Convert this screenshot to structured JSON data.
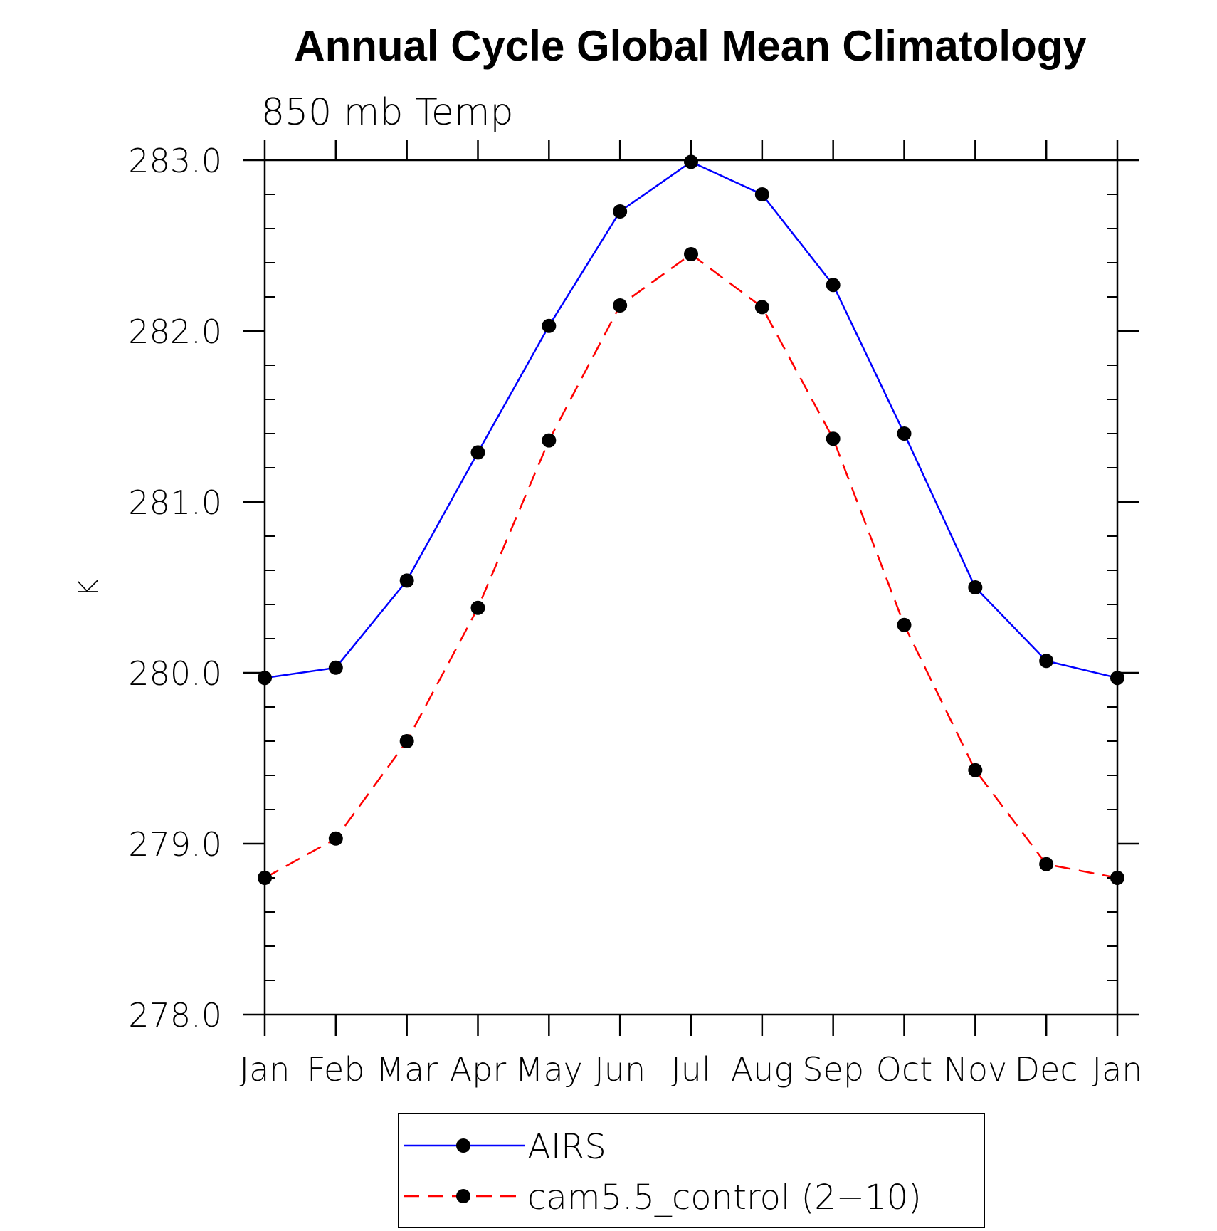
{
  "chart_data": {
    "type": "line",
    "title": "Annual Cycle Global Mean Climatology",
    "subtitle": "850 mb Temp",
    "xlabel": "",
    "ylabel": "K",
    "categories": [
      "Jan",
      "Feb",
      "Mar",
      "Apr",
      "May",
      "Jun",
      "Jul",
      "Aug",
      "Sep",
      "Oct",
      "Nov",
      "Dec",
      "Jan"
    ],
    "ylim": [
      278.0,
      283.0
    ],
    "yticks": [
      "278.0",
      "279.0",
      "280.0",
      "281.0",
      "282.0",
      "283.0"
    ],
    "y_minor_step": 0.2,
    "grid": false,
    "legend_position": "bottom-center",
    "series": [
      {
        "name": "AIRS",
        "color": "#0000ff",
        "line_style": "solid",
        "marker": "filled-circle",
        "values": [
          279.97,
          280.03,
          280.54,
          281.29,
          282.03,
          282.7,
          282.99,
          282.8,
          282.27,
          281.4,
          280.5,
          280.07,
          279.97
        ]
      },
      {
        "name": "cam5.5_control (2−10)",
        "color": "#ff0000",
        "line_style": "dashed",
        "marker": "filled-circle",
        "values": [
          278.8,
          279.03,
          279.6,
          280.38,
          281.36,
          282.15,
          282.45,
          282.14,
          281.37,
          280.28,
          279.43,
          278.88,
          278.8
        ]
      }
    ]
  }
}
